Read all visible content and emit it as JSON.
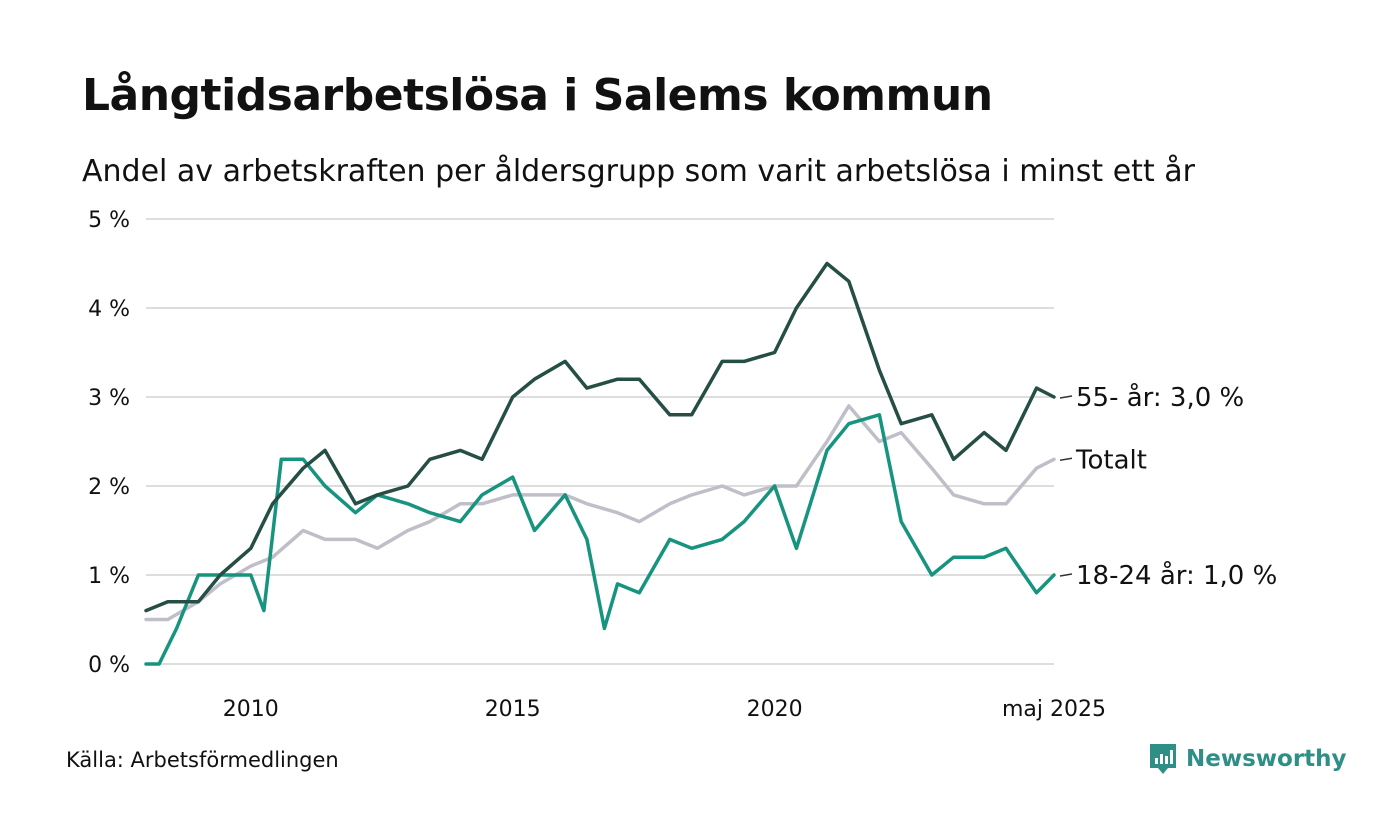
{
  "title": "Långtidsarbetslösa i Salems kommun",
  "subtitle": "Andel av arbetskraften per åldersgrupp som varit arbetslösa i minst ett år",
  "source": "Källa: Arbetsförmedlingen",
  "brand": {
    "name": "Newsworthy",
    "color": "#2e8f86",
    "icon": "newsworthy-logo-icon"
  },
  "chart_data": {
    "type": "line",
    "x_start": "2008-01",
    "x_end": "2025-05",
    "x_ticks": [
      {
        "value": "2010-01",
        "label": "2010"
      },
      {
        "value": "2015-01",
        "label": "2015"
      },
      {
        "value": "2020-01",
        "label": "2020"
      },
      {
        "value": "2025-05",
        "label": "maj 2025"
      }
    ],
    "y_ticks": [
      {
        "value": 0,
        "label": "0 %"
      },
      {
        "value": 1,
        "label": "1 %"
      },
      {
        "value": 2,
        "label": "2 %"
      },
      {
        "value": 3,
        "label": "3 %"
      },
      {
        "value": 4,
        "label": "4 %"
      },
      {
        "value": 5,
        "label": "5 %"
      }
    ],
    "ylim": [
      0,
      5
    ],
    "grid": true,
    "series": [
      {
        "name": "Totalt",
        "end_label": "Totalt",
        "color": "#c0bfc9",
        "points": [
          [
            "2008-01",
            0.5
          ],
          [
            "2008-06",
            0.5
          ],
          [
            "2009-01",
            0.7
          ],
          [
            "2009-06",
            0.9
          ],
          [
            "2010-01",
            1.1
          ],
          [
            "2010-06",
            1.2
          ],
          [
            "2011-01",
            1.5
          ],
          [
            "2011-06",
            1.4
          ],
          [
            "2012-01",
            1.4
          ],
          [
            "2012-06",
            1.3
          ],
          [
            "2013-01",
            1.5
          ],
          [
            "2013-06",
            1.6
          ],
          [
            "2014-01",
            1.8
          ],
          [
            "2014-06",
            1.8
          ],
          [
            "2015-01",
            1.9
          ],
          [
            "2015-06",
            1.9
          ],
          [
            "2016-01",
            1.9
          ],
          [
            "2016-06",
            1.8
          ],
          [
            "2017-01",
            1.7
          ],
          [
            "2017-06",
            1.6
          ],
          [
            "2018-01",
            1.8
          ],
          [
            "2018-06",
            1.9
          ],
          [
            "2019-01",
            2.0
          ],
          [
            "2019-06",
            1.9
          ],
          [
            "2020-01",
            2.0
          ],
          [
            "2020-06",
            2.0
          ],
          [
            "2021-01",
            2.5
          ],
          [
            "2021-06",
            2.9
          ],
          [
            "2022-01",
            2.5
          ],
          [
            "2022-06",
            2.6
          ],
          [
            "2023-01",
            2.2
          ],
          [
            "2023-06",
            1.9
          ],
          [
            "2024-01",
            1.8
          ],
          [
            "2024-06",
            1.8
          ],
          [
            "2025-01",
            2.2
          ],
          [
            "2025-05",
            2.3
          ]
        ]
      },
      {
        "name": "18-24 år",
        "end_label": "18-24 år: 1,0 %",
        "color": "#16947f",
        "points": [
          [
            "2008-01",
            0.0
          ],
          [
            "2008-04",
            0.0
          ],
          [
            "2008-08",
            0.4
          ],
          [
            "2009-01",
            1.0
          ],
          [
            "2009-06",
            1.0
          ],
          [
            "2010-01",
            1.0
          ],
          [
            "2010-04",
            0.6
          ],
          [
            "2010-08",
            2.3
          ],
          [
            "2011-01",
            2.3
          ],
          [
            "2011-06",
            2.0
          ],
          [
            "2012-01",
            1.7
          ],
          [
            "2012-06",
            1.9
          ],
          [
            "2013-01",
            1.8
          ],
          [
            "2013-06",
            1.7
          ],
          [
            "2014-01",
            1.6
          ],
          [
            "2014-06",
            1.9
          ],
          [
            "2015-01",
            2.1
          ],
          [
            "2015-06",
            1.5
          ],
          [
            "2016-01",
            1.9
          ],
          [
            "2016-06",
            1.4
          ],
          [
            "2016-10",
            0.4
          ],
          [
            "2017-01",
            0.9
          ],
          [
            "2017-06",
            0.8
          ],
          [
            "2018-01",
            1.4
          ],
          [
            "2018-06",
            1.3
          ],
          [
            "2019-01",
            1.4
          ],
          [
            "2019-06",
            1.6
          ],
          [
            "2020-01",
            2.0
          ],
          [
            "2020-06",
            1.3
          ],
          [
            "2021-01",
            2.4
          ],
          [
            "2021-06",
            2.7
          ],
          [
            "2022-01",
            2.8
          ],
          [
            "2022-06",
            1.6
          ],
          [
            "2023-01",
            1.0
          ],
          [
            "2023-06",
            1.2
          ],
          [
            "2024-01",
            1.2
          ],
          [
            "2024-06",
            1.3
          ],
          [
            "2025-01",
            0.8
          ],
          [
            "2025-05",
            1.0
          ]
        ]
      },
      {
        "name": "55- år",
        "end_label": "55- år: 3,0 %",
        "color": "#254e45",
        "points": [
          [
            "2008-01",
            0.6
          ],
          [
            "2008-06",
            0.7
          ],
          [
            "2009-01",
            0.7
          ],
          [
            "2009-06",
            1.0
          ],
          [
            "2010-01",
            1.3
          ],
          [
            "2010-06",
            1.8
          ],
          [
            "2011-01",
            2.2
          ],
          [
            "2011-06",
            2.4
          ],
          [
            "2012-01",
            1.8
          ],
          [
            "2012-06",
            1.9
          ],
          [
            "2013-01",
            2.0
          ],
          [
            "2013-06",
            2.3
          ],
          [
            "2014-01",
            2.4
          ],
          [
            "2014-06",
            2.3
          ],
          [
            "2015-01",
            3.0
          ],
          [
            "2015-06",
            3.2
          ],
          [
            "2016-01",
            3.4
          ],
          [
            "2016-06",
            3.1
          ],
          [
            "2017-01",
            3.2
          ],
          [
            "2017-06",
            3.2
          ],
          [
            "2018-01",
            2.8
          ],
          [
            "2018-06",
            2.8
          ],
          [
            "2019-01",
            3.4
          ],
          [
            "2019-06",
            3.4
          ],
          [
            "2020-01",
            3.5
          ],
          [
            "2020-06",
            4.0
          ],
          [
            "2021-01",
            4.5
          ],
          [
            "2021-06",
            4.3
          ],
          [
            "2022-01",
            3.3
          ],
          [
            "2022-06",
            2.7
          ],
          [
            "2023-01",
            2.8
          ],
          [
            "2023-06",
            2.3
          ],
          [
            "2024-01",
            2.6
          ],
          [
            "2024-06",
            2.4
          ],
          [
            "2025-01",
            3.1
          ],
          [
            "2025-05",
            3.0
          ]
        ]
      }
    ]
  }
}
